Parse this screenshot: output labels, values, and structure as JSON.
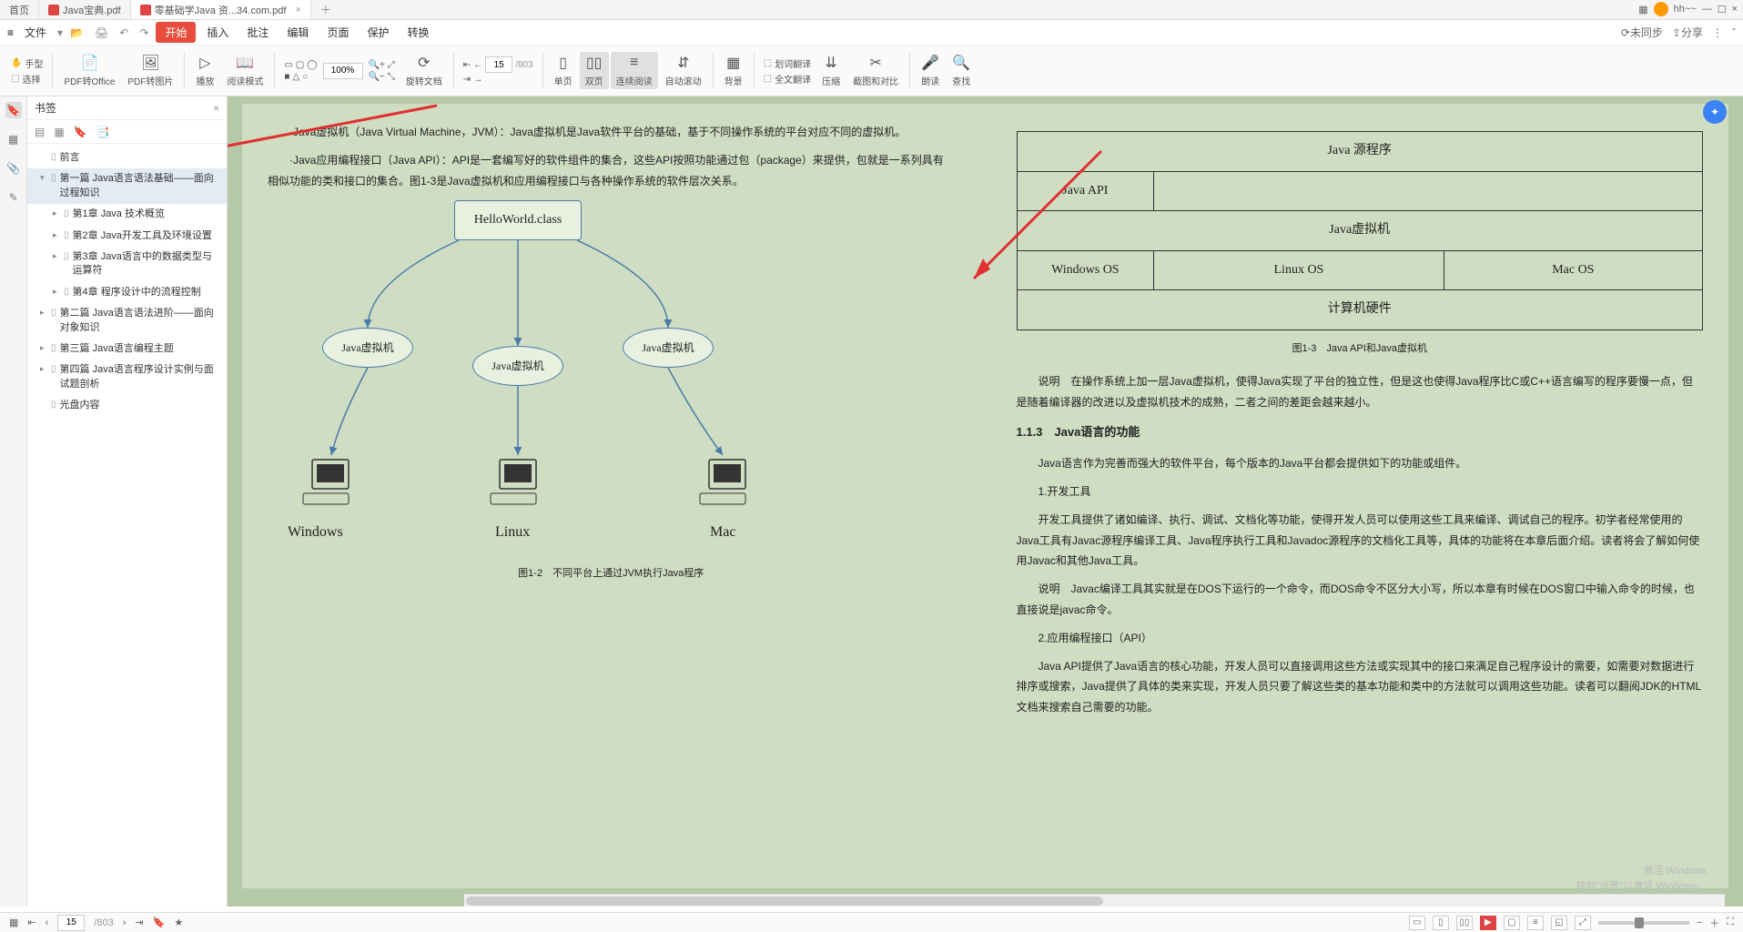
{
  "tabs": [
    {
      "label": "首页",
      "active": false
    },
    {
      "label": "Java宝典.pdf",
      "active": false
    },
    {
      "label": "零基础学Java 资...34.com.pdf",
      "active": true
    }
  ],
  "topRight": {
    "username": "hh~~"
  },
  "menubar": {
    "file": "文件",
    "items": [
      "开始",
      "插入",
      "批注",
      "编辑",
      "页面",
      "保护",
      "转换"
    ],
    "right": {
      "unsync": "⟳未同步",
      "share": "⇪分享"
    }
  },
  "toolbar": {
    "hand": "手型",
    "select": "选择",
    "pdf2office": "PDF转Office",
    "pdf2pic": "PDF转图片",
    "play": "播放",
    "readmode": "阅读模式",
    "zoom": "100%",
    "rotate": "旋转文档",
    "page_cur": "15",
    "page_total": "/803",
    "single": "单页",
    "double": "双页",
    "continuous": "连续阅读",
    "autoscroll": "自动滚动",
    "background": "背景",
    "dictrans": "划词翻译",
    "fulltrans": "全文翻译",
    "compress": "压缩",
    "snapcompare": "截图和对比",
    "read": "朗读",
    "find": "查找"
  },
  "bookmarks": {
    "title": "书签",
    "items": [
      {
        "label": "前言",
        "level": 0,
        "expand": ""
      },
      {
        "label": "第一篇 Java语言语法基础——面向过程知识",
        "level": 0,
        "expand": "▾",
        "selected": true
      },
      {
        "label": "第1章 Java 技术概览",
        "level": 1,
        "expand": "▸"
      },
      {
        "label": "第2章 Java开发工具及环境设置",
        "level": 1,
        "expand": "▸"
      },
      {
        "label": "第3章 Java语言中的数据类型与运算符",
        "level": 1,
        "expand": "▸"
      },
      {
        "label": "第4章 程序设计中的流程控制",
        "level": 1,
        "expand": "▸"
      },
      {
        "label": "第二篇 Java语言语法进阶——面向对象知识",
        "level": 0,
        "expand": "▸"
      },
      {
        "label": "第三篇 Java语言编程主题",
        "level": 0,
        "expand": "▸"
      },
      {
        "label": "第四篇 Java语言程序设计实例与面试题剖析",
        "level": 0,
        "expand": "▸"
      },
      {
        "label": "光盘内容",
        "level": 0,
        "expand": ""
      }
    ]
  },
  "leftPage": {
    "p1": "·Java虚拟机（Java Virtual Machine，JVM）：Java虚拟机是Java软件平台的基础，基于不同操作系统的平台对应不同的虚拟机。",
    "p2": "·Java应用编程接口（Java API）：API是一套编写好的软件组件的集合，这些API按照功能通过包（package）来提供，包就是一系列具有相似功能的类和接口的集合。图1-3是Java虚拟机和应用编程接口与各种操作系统的软件层次关系。",
    "diagram": {
      "docNode": "HelloWorld.class",
      "jvm": "Java虚拟机",
      "os": [
        "Windows",
        "Linux",
        "Mac"
      ],
      "caption": "图1-2　不同平台上通过JVM执行Java程序"
    }
  },
  "rightPage": {
    "table": {
      "r1": "Java 源程序",
      "r2": "Java API",
      "r3": "Java虚拟机",
      "r4": [
        "Windows OS",
        "Linux OS",
        "Mac OS"
      ],
      "r5": "计算机硬件",
      "caption": "图1-3　Java API和Java虚拟机"
    },
    "p_note1": "说明　在操作系统上加一层Java虚拟机，使得Java实现了平台的独立性，但是这也使得Java程序比C或C++语言编写的程序要慢一点，但是随着编译器的改进以及虚拟机技术的成熟，二者之间的差距会越来越小。",
    "h1": "1.1.3　Java语言的功能",
    "p1": "Java语言作为完善而强大的软件平台，每个版本的Java平台都会提供如下的功能或组件。",
    "p2t": "1.开发工具",
    "p2": "开发工具提供了诸如编译、执行、调试、文档化等功能，使得开发人员可以使用这些工具来编译、调试自己的程序。初学者经常使用的Java工具有Javac源程序编译工具、Java程序执行工具和Javadoc源程序的文档化工具等，具体的功能将在本章后面介绍。读者将会了解如何使用Javac和其他Java工具。",
    "p_note2": "说明　Javac编译工具其实就是在DOS下运行的一个命令，而DOS命令不区分大小写，所以本章有时候在DOS窗口中输入命令的时候，也直接说是javac命令。",
    "p3t": "2.应用编程接口（API）",
    "p3": "Java API提供了Java语言的核心功能，开发人员可以直接调用这些方法或实现其中的接口来满足自己程序设计的需要，如需要对数据进行排序或搜索，Java提供了具体的类来实现，开发人员只要了解这些类的基本功能和类中的方法就可以调用这些功能。读者可以翻阅JDK的HTML文档来搜索自己需要的功能。"
  },
  "watermark": {
    "l1": "激活 Windows",
    "l2": "转到\"设置\"以激活 Windows。"
  },
  "statusbar": {
    "page_cur": "15",
    "page_total": "/803"
  }
}
